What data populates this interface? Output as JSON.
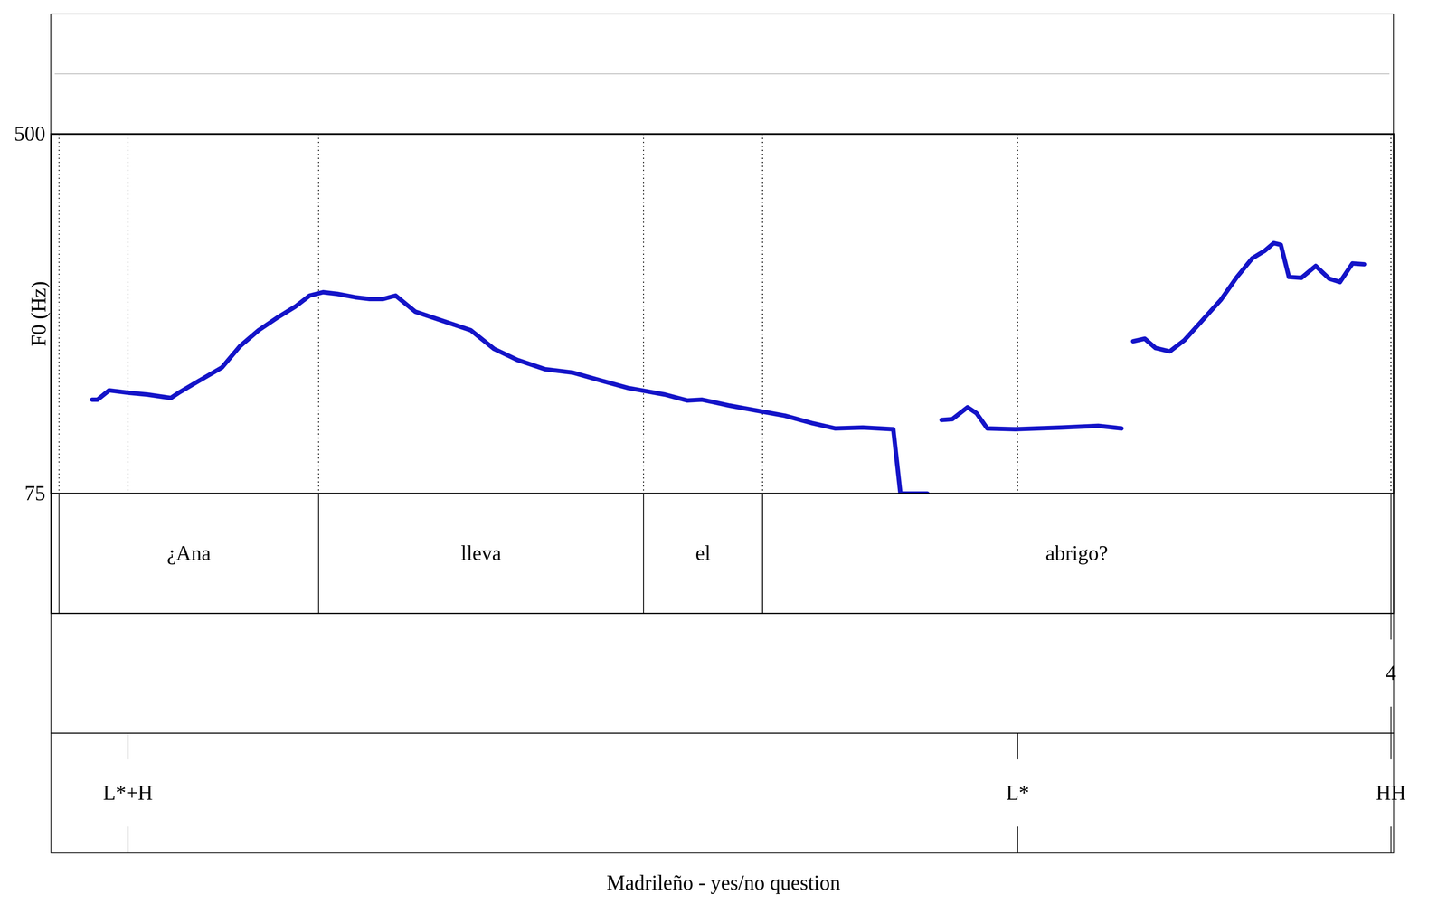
{
  "chart_data": {
    "type": "line",
    "ylabel": "F0 (Hz)",
    "caption": "Madrileño - yes/no question",
    "xlim": [
      0,
      1.5
    ],
    "ylim": [
      75,
      500
    ],
    "yticks": [
      75,
      500
    ],
    "tick_labels": "y",
    "color": "#1414c8",
    "x": [
      0.046,
      0.052,
      0.065,
      0.088,
      0.108,
      0.134,
      0.144,
      0.165,
      0.191,
      0.211,
      0.232,
      0.253,
      0.273,
      0.289,
      0.304,
      0.32,
      0.34,
      0.356,
      0.371,
      0.385,
      0.407,
      0.438,
      0.469,
      0.495,
      0.521,
      0.552,
      0.583,
      0.613,
      0.644,
      0.686,
      0.711,
      0.727,
      0.758,
      0.789,
      0.82,
      0.851,
      0.876,
      0.907,
      0.941,
      0.949,
      0.979,
      0.987,
      0.995,
      1.007,
      1.024,
      1.034,
      1.046,
      1.077,
      1.129,
      1.17,
      1.196,
      1.202,
      1.209,
      1.222,
      1.234,
      1.25,
      1.266,
      1.284,
      1.307,
      1.325,
      1.342,
      1.356,
      1.366,
      1.374,
      1.383,
      1.397,
      1.413,
      1.428,
      1.44,
      1.454,
      1.467
    ],
    "values": [
      186,
      186,
      197,
      194,
      192,
      188,
      195,
      208,
      224,
      249,
      268,
      283,
      296,
      309,
      313,
      311,
      307,
      305,
      305,
      309,
      290,
      279,
      268,
      246,
      233,
      222,
      218,
      209,
      200,
      192,
      185,
      186,
      179,
      173,
      167,
      158,
      152,
      153,
      151,
      75,
      75,
      null,
      162,
      163,
      177,
      170,
      152,
      151,
      153,
      155,
      152,
      null,
      255,
      258,
      247,
      243,
      256,
      277,
      304,
      331,
      353,
      362,
      371,
      369,
      331,
      330,
      344,
      329,
      325,
      347,
      346
    ],
    "tiers": [
      {
        "type": "interval",
        "intervals": [
          {
            "start": 0.009,
            "end": 0.299,
            "text": "¿Ana"
          },
          {
            "start": 0.299,
            "end": 0.662,
            "text": "lleva"
          },
          {
            "start": 0.662,
            "end": 0.795,
            "text": "el"
          },
          {
            "start": 0.795,
            "end": 1.497,
            "text": "abrigo?"
          }
        ]
      },
      {
        "type": "point",
        "points": [
          {
            "time": 1.497,
            "label": "4"
          }
        ]
      },
      {
        "type": "point",
        "points": [
          {
            "time": 0.086,
            "label": "L*+H"
          },
          {
            "time": 1.08,
            "label": "L*"
          },
          {
            "time": 1.497,
            "label": "HH"
          }
        ]
      }
    ]
  }
}
